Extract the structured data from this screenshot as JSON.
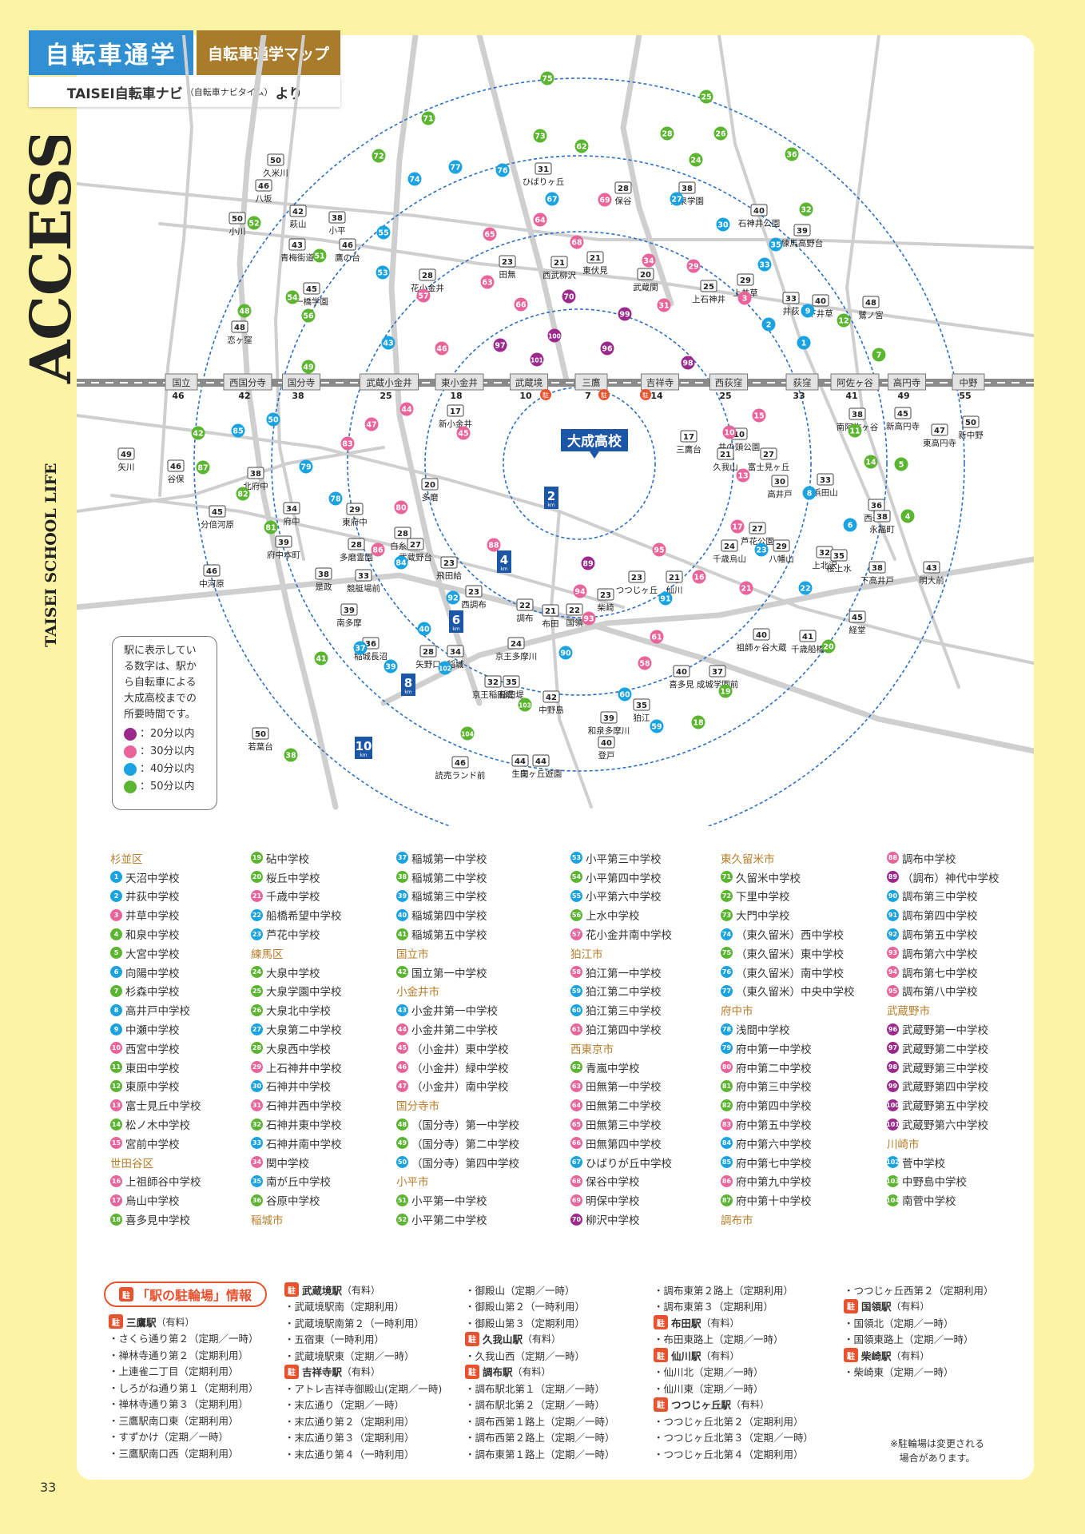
{
  "header": {
    "badge": "自転車通学",
    "subtitle": "自転車通学マップ",
    "source_main": "TAISEI自転車ナビ",
    "source_paren": "（自転車ナビタイム）",
    "source_tail": "より"
  },
  "side": {
    "access": "ACCESS",
    "life": "TAISEI SCHOOL LIFE"
  },
  "page_number": "33",
  "school_label": "大成高校",
  "distance_markers": [
    "2",
    "4",
    "6",
    "8",
    "10"
  ],
  "distance_unit": "km",
  "legend": {
    "text_lines": [
      "駅に表示してい",
      "る数字は、駅か",
      "ら自転車による",
      "大成高校までの",
      "所要時間です。"
    ],
    "items": [
      {
        "label": "：20分以内",
        "color": "#9b2a8c"
      },
      {
        "label": "：30分以内",
        "color": "#e8649a"
      },
      {
        "label": "：40分以内",
        "color": "#1aa3e0"
      },
      {
        "label": "：50分以内",
        "color": "#5bb531"
      }
    ]
  },
  "line_stations": [
    {
      "name": "国立",
      "min": "46"
    },
    {
      "name": "西国分寺",
      "min": "42"
    },
    {
      "name": "国分寺",
      "min": "38"
    },
    {
      "name": "武蔵小金井",
      "min": "25"
    },
    {
      "name": "東小金井",
      "min": "18"
    },
    {
      "name": "武蔵境",
      "min": "10"
    },
    {
      "name": "三鷹",
      "min": "7"
    },
    {
      "name": "吉祥寺",
      "min": "14"
    },
    {
      "name": "西荻窪",
      "min": "25"
    },
    {
      "name": "荻窪",
      "min": "33"
    },
    {
      "name": "阿佐ヶ谷",
      "min": "41"
    },
    {
      "name": "高円寺",
      "min": "49"
    },
    {
      "name": "中野",
      "min": "55"
    }
  ],
  "map_stations": [
    {
      "name": "久米川",
      "min": "50"
    },
    {
      "name": "八坂",
      "min": "46"
    },
    {
      "name": "小川",
      "min": "50"
    },
    {
      "name": "萩山",
      "min": "42"
    },
    {
      "name": "小平",
      "min": "38"
    },
    {
      "name": "鷹の台",
      "min": "46"
    },
    {
      "name": "青梅街道",
      "min": "43"
    },
    {
      "name": "一橋学園",
      "min": "45"
    },
    {
      "name": "恋ヶ窪",
      "min": "48"
    },
    {
      "name": "ひばりヶ丘",
      "min": "31"
    },
    {
      "name": "保谷",
      "min": "28"
    },
    {
      "name": "大泉学園",
      "min": "38"
    },
    {
      "name": "石神井公園",
      "min": "40"
    },
    {
      "name": "練馬高野台",
      "min": "39"
    },
    {
      "name": "花小金井",
      "min": "28"
    },
    {
      "name": "田無",
      "min": "23"
    },
    {
      "name": "西武柳沢",
      "min": "21"
    },
    {
      "name": "東伏見",
      "min": "21"
    },
    {
      "name": "武蔵関",
      "min": "20"
    },
    {
      "name": "上石神井",
      "min": "25"
    },
    {
      "name": "上井草",
      "min": "29"
    },
    {
      "name": "井荻",
      "min": "33"
    },
    {
      "name": "下井草",
      "min": "40"
    },
    {
      "name": "鷺ノ宮",
      "min": "48"
    },
    {
      "name": "新小金井",
      "min": "17"
    },
    {
      "name": "三鷹台",
      "min": "17"
    },
    {
      "name": "井の頭公園",
      "min": "10"
    },
    {
      "name": "久我山",
      "min": "21"
    },
    {
      "name": "富士見ヶ丘",
      "min": "27"
    },
    {
      "name": "高井戸",
      "min": "30"
    },
    {
      "name": "浜田山",
      "min": "33"
    },
    {
      "name": "西永福",
      "min": "36"
    },
    {
      "name": "永福町",
      "min": "38"
    },
    {
      "name": "新高円寺",
      "min": "45"
    },
    {
      "name": "南阿佐ヶ谷",
      "min": "38"
    },
    {
      "name": "東高円寺",
      "min": "47"
    },
    {
      "name": "新中野",
      "min": "50"
    },
    {
      "name": "谷保",
      "min": "46"
    },
    {
      "name": "矢川",
      "min": "49"
    },
    {
      "name": "北府中",
      "min": "38"
    },
    {
      "name": "府中",
      "min": "34"
    },
    {
      "name": "分倍河原",
      "min": "45"
    },
    {
      "name": "府中本町",
      "min": "39"
    },
    {
      "name": "中河原",
      "min": "46"
    },
    {
      "name": "多磨",
      "min": "20"
    },
    {
      "name": "東府中",
      "min": "29"
    },
    {
      "name": "白糸台",
      "min": "28"
    },
    {
      "name": "多磨霊園",
      "min": "28"
    },
    {
      "name": "武蔵野台",
      "min": "27"
    },
    {
      "name": "飛田給",
      "min": "23"
    },
    {
      "name": "競艇場前",
      "min": "33"
    },
    {
      "name": "是政",
      "min": "38"
    },
    {
      "name": "西調布",
      "min": "23"
    },
    {
      "name": "調布",
      "min": "22"
    },
    {
      "name": "布田",
      "min": "21"
    },
    {
      "name": "国領",
      "min": "22"
    },
    {
      "name": "柴崎",
      "min": "23"
    },
    {
      "name": "つつじヶ丘",
      "min": "23"
    },
    {
      "name": "仙川",
      "min": "21"
    },
    {
      "name": "芦花公園",
      "min": "27"
    },
    {
      "name": "千歳烏山",
      "min": "24"
    },
    {
      "name": "八幡山",
      "min": "29"
    },
    {
      "name": "上北沢",
      "min": "32"
    },
    {
      "name": "桜上水",
      "min": "35"
    },
    {
      "name": "下高井戸",
      "min": "38"
    },
    {
      "name": "明大前",
      "min": "43"
    },
    {
      "name": "京王多摩川",
      "min": "24"
    },
    {
      "name": "南多摩",
      "min": "39"
    },
    {
      "name": "稲城長沼",
      "min": "36"
    },
    {
      "name": "矢野口",
      "min": "28"
    },
    {
      "name": "稲城",
      "min": "34"
    },
    {
      "name": "京王稲田堤",
      "min": "32"
    },
    {
      "name": "稲田堤",
      "min": "35"
    },
    {
      "name": "中野島",
      "min": "42"
    },
    {
      "name": "和泉多摩川",
      "min": "39"
    },
    {
      "name": "狛江",
      "min": "35"
    },
    {
      "name": "喜多見",
      "min": "40"
    },
    {
      "name": "成城学園前",
      "min": "37"
    },
    {
      "name": "祖師ヶ谷大蔵",
      "min": "40"
    },
    {
      "name": "千歳船橋",
      "min": "41"
    },
    {
      "name": "経堂",
      "min": "45"
    },
    {
      "name": "登戸",
      "min": "40"
    },
    {
      "name": "向ヶ丘遊園",
      "min": "44"
    },
    {
      "name": "生田",
      "min": "44"
    },
    {
      "name": "読売ランド前",
      "min": "46"
    },
    {
      "name": "若葉台",
      "min": "50"
    }
  ],
  "school_areas": [
    {
      "area": "杉並区",
      "schools": [
        [
          "1",
          "天沼中学校"
        ],
        [
          "2",
          "井荻中学校"
        ],
        [
          "3",
          "井草中学校"
        ],
        [
          "4",
          "和泉中学校"
        ],
        [
          "5",
          "大宮中学校"
        ],
        [
          "6",
          "向陽中学校"
        ],
        [
          "7",
          "杉森中学校"
        ],
        [
          "8",
          "高井戸中学校"
        ],
        [
          "9",
          "中瀬中学校"
        ],
        [
          "10",
          "西宮中学校"
        ],
        [
          "11",
          "東田中学校"
        ],
        [
          "12",
          "東原中学校"
        ],
        [
          "13",
          "富士見丘中学校"
        ],
        [
          "14",
          "松ノ木中学校"
        ],
        [
          "15",
          "宮前中学校"
        ]
      ]
    },
    {
      "area": "世田谷区",
      "schools": [
        [
          "16",
          "上祖師谷中学校"
        ],
        [
          "17",
          "烏山中学校"
        ],
        [
          "18",
          "喜多見中学校"
        ],
        [
          "19",
          "砧中学校"
        ],
        [
          "20",
          "桜丘中学校"
        ],
        [
          "21",
          "千歳中学校"
        ],
        [
          "22",
          "船橋希望中学校"
        ],
        [
          "23",
          "芦花中学校"
        ]
      ]
    },
    {
      "area": "練馬区",
      "schools": [
        [
          "24",
          "大泉中学校"
        ],
        [
          "25",
          "大泉学園中学校"
        ],
        [
          "26",
          "大泉北中学校"
        ],
        [
          "27",
          "大泉第二中学校"
        ],
        [
          "28",
          "大泉西中学校"
        ],
        [
          "29",
          "上石神井中学校"
        ],
        [
          "30",
          "石神井中学校"
        ],
        [
          "31",
          "石神井西中学校"
        ],
        [
          "32",
          "石神井東中学校"
        ],
        [
          "33",
          "石神井南中学校"
        ],
        [
          "34",
          "関中学校"
        ],
        [
          "35",
          "南が丘中学校"
        ],
        [
          "36",
          "谷原中学校"
        ]
      ]
    },
    {
      "area": "稲城市",
      "schools": [
        [
          "37",
          "稲城第一中学校"
        ],
        [
          "38",
          "稲城第二中学校"
        ],
        [
          "39",
          "稲城第三中学校"
        ],
        [
          "40",
          "稲城第四中学校"
        ],
        [
          "41",
          "稲城第五中学校"
        ]
      ]
    },
    {
      "area": "国立市",
      "schools": [
        [
          "42",
          "国立第一中学校"
        ]
      ]
    },
    {
      "area": "小金井市",
      "schools": [
        [
          "43",
          "小金井第一中学校"
        ],
        [
          "44",
          "小金井第二中学校"
        ],
        [
          "45",
          "（小金井）東中学校"
        ],
        [
          "46",
          "（小金井）緑中学校"
        ],
        [
          "47",
          "（小金井）南中学校"
        ]
      ]
    },
    {
      "area": "国分寺市",
      "schools": [
        [
          "48",
          "（国分寺）第一中学校"
        ],
        [
          "49",
          "（国分寺）第二中学校"
        ],
        [
          "50",
          "（国分寺）第四中学校"
        ]
      ]
    },
    {
      "area": "小平市",
      "schools": [
        [
          "51",
          "小平第一中学校"
        ],
        [
          "52",
          "小平第二中学校"
        ],
        [
          "53",
          "小平第三中学校"
        ],
        [
          "54",
          "小平第四中学校"
        ],
        [
          "55",
          "小平第六中学校"
        ],
        [
          "56",
          "上水中学校"
        ],
        [
          "57",
          "花小金井南中学校"
        ]
      ]
    },
    {
      "area": "狛江市",
      "schools": [
        [
          "58",
          "狛江第一中学校"
        ],
        [
          "59",
          "狛江第二中学校"
        ],
        [
          "60",
          "狛江第三中学校"
        ],
        [
          "61",
          "狛江第四中学校"
        ]
      ]
    },
    {
      "area": "西東京市",
      "schools": [
        [
          "62",
          "青嵐中学校"
        ],
        [
          "63",
          "田無第一中学校"
        ],
        [
          "64",
          "田無第二中学校"
        ],
        [
          "65",
          "田無第三中学校"
        ],
        [
          "66",
          "田無第四中学校"
        ],
        [
          "67",
          "ひばりが丘中学校"
        ],
        [
          "68",
          "保谷中学校"
        ],
        [
          "69",
          "明保中学校"
        ],
        [
          "70",
          "柳沢中学校"
        ]
      ]
    },
    {
      "area": "東久留米市",
      "schools": [
        [
          "71",
          "久留米中学校"
        ],
        [
          "72",
          "下里中学校"
        ],
        [
          "73",
          "大門中学校"
        ],
        [
          "74",
          "（東久留米）西中学校"
        ],
        [
          "75",
          "（東久留米）東中学校"
        ],
        [
          "76",
          "（東久留米）南中学校"
        ],
        [
          "77",
          "（東久留米）中央中学校"
        ]
      ]
    },
    {
      "area": "府中市",
      "schools": [
        [
          "78",
          "浅間中学校"
        ],
        [
          "79",
          "府中第一中学校"
        ],
        [
          "80",
          "府中第二中学校"
        ],
        [
          "81",
          "府中第三中学校"
        ],
        [
          "82",
          "府中第四中学校"
        ],
        [
          "83",
          "府中第五中学校"
        ],
        [
          "84",
          "府中第六中学校"
        ],
        [
          "85",
          "府中第七中学校"
        ],
        [
          "86",
          "府中第九中学校"
        ],
        [
          "87",
          "府中第十中学校"
        ]
      ]
    },
    {
      "area": "調布市",
      "schools": [
        [
          "88",
          "調布中学校"
        ],
        [
          "89",
          "（調布）神代中学校"
        ],
        [
          "90",
          "調布第三中学校"
        ],
        [
          "91",
          "調布第四中学校"
        ],
        [
          "92",
          "調布第五中学校"
        ],
        [
          "93",
          "調布第六中学校"
        ],
        [
          "94",
          "調布第七中学校"
        ],
        [
          "95",
          "調布第八中学校"
        ]
      ]
    },
    {
      "area": "武蔵野市",
      "schools": [
        [
          "96",
          "武蔵野第一中学校"
        ],
        [
          "97",
          "武蔵野第二中学校"
        ],
        [
          "98",
          "武蔵野第三中学校"
        ],
        [
          "99",
          "武蔵野第四中学校"
        ],
        [
          "100",
          "武蔵野第五中学校"
        ],
        [
          "101",
          "武蔵野第六中学校"
        ]
      ]
    },
    {
      "area": "川崎市",
      "schools": [
        [
          "102",
          "菅中学校"
        ],
        [
          "103",
          "中野島中学校"
        ],
        [
          "104",
          "南菅中学校"
        ]
      ]
    }
  ],
  "parking": {
    "title": "「駅の駐輪場」情報",
    "badge": "駐",
    "stations": [
      {
        "name": "三鷹駅",
        "fee": "（有料）",
        "lots": [
          "さくら通り第２（定期／一時）",
          "禅林寺通り第２（定期利用）",
          "上連雀二丁目（定期利用）",
          "しろがね通り第１（定期利用）",
          "禅林寺通り第３（定期利用）",
          "三鷹駅南口東（定期利用）",
          "すずかけ（定期／一時）",
          "三鷹駅南口西（定期利用）"
        ]
      },
      {
        "name": "武蔵境駅",
        "fee": "（有料）",
        "lots": [
          "武蔵境駅南（定期利用）",
          "武蔵境駅南第２（一時利用）",
          "五宿東（一時利用）",
          "武蔵境駅東（定期／一時）"
        ]
      },
      {
        "name": "吉祥寺駅",
        "fee": "（有料）",
        "lots": [
          "アトレ吉祥寺御殿山(定期／一時)",
          "末広通り（定期／一時）",
          "末広通り第２（定期利用）",
          "末広通り第３（定期利用）",
          "末広通り第４（一時利用）",
          "御殿山（定期／一時）",
          "御殿山第２（一時利用）",
          "御殿山第３（定期利用）"
        ]
      },
      {
        "name": "久我山駅",
        "fee": "（有料）",
        "lots": [
          "久我山西（定期／一時）"
        ]
      },
      {
        "name": "調布駅",
        "fee": "（有料）",
        "lots": [
          "調布駅北第１（定期／一時）",
          "調布駅北第２（定期／一時）",
          "調布西第１路上（定期／一時）",
          "調布西第２路上（定期／一時）",
          "調布東第１路上（定期／一時）",
          "調布東第２路上（定期利用）",
          "調布東第３（定期利用）"
        ]
      },
      {
        "name": "布田駅",
        "fee": "（有料）",
        "lots": [
          "布田東路上（定期／一時）"
        ]
      },
      {
        "name": "仙川駅",
        "fee": "（有料）",
        "lots": [
          "仙川北（定期／一時）",
          "仙川東（定期／一時）"
        ]
      },
      {
        "name": "つつじヶ丘駅",
        "fee": "（有料）",
        "lots": [
          "つつじヶ丘北第２（定期利用）",
          "つつじヶ丘北第３（定期／一時）",
          "つつじヶ丘北第４（定期利用）",
          "つつじヶ丘西第２（定期利用）"
        ]
      },
      {
        "name": "国領駅",
        "fee": "（有料）",
        "lots": [
          "国領北（定期／一時）",
          "国領東路上（定期／一時）"
        ]
      },
      {
        "name": "柴崎駅",
        "fee": "（有料）",
        "lots": [
          "柴崎東（定期／一時）"
        ]
      }
    ],
    "note_lines": [
      "※駐輪場は変更される",
      "場合があります。"
    ]
  }
}
